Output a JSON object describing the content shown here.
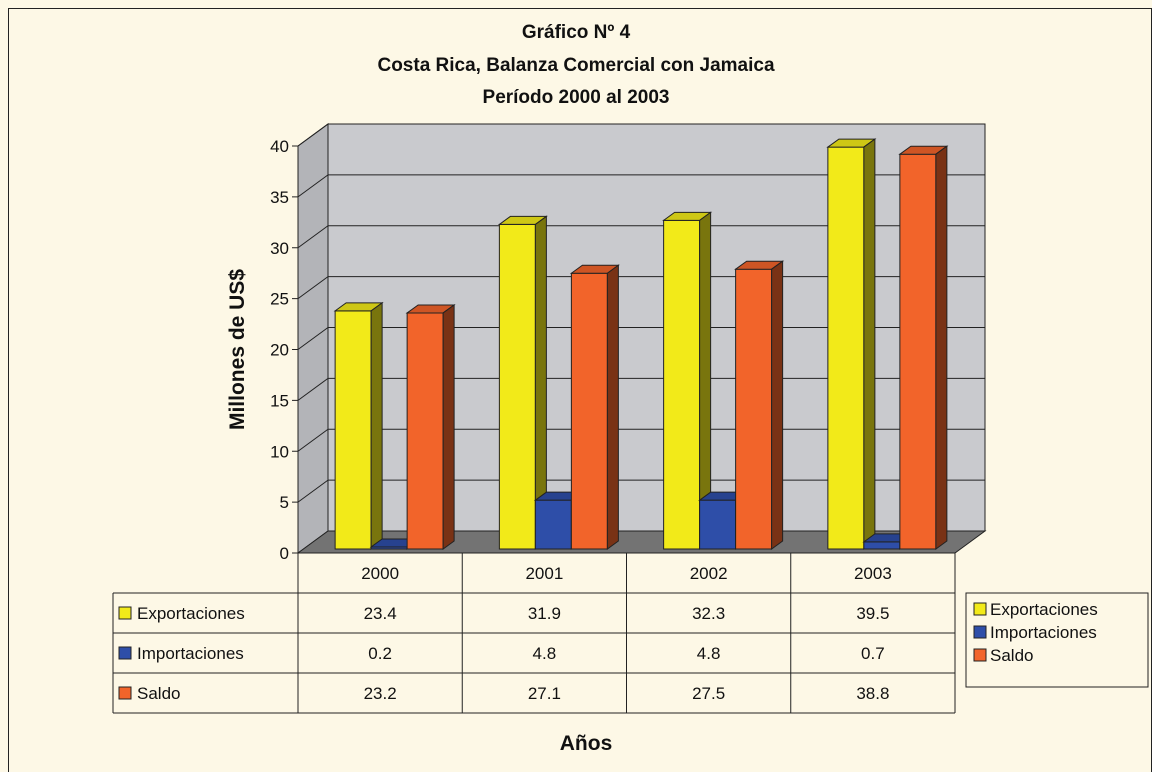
{
  "chart_data": {
    "type": "bar",
    "title": "Gráfico Nº 4",
    "subtitle_lines": [
      "Costa Rica, Balanza Comercial con Jamaica",
      "Período 2000 al 2003"
    ],
    "xlabel": "Años",
    "ylabel": "Millones de US$",
    "categories": [
      "2000",
      "2001",
      "2002",
      "2003"
    ],
    "series": [
      {
        "name": "Exportaciones",
        "values": [
          23.4,
          31.9,
          32.3,
          39.5
        ],
        "color": "#f2ea19"
      },
      {
        "name": "Importaciones",
        "values": [
          0.2,
          4.8,
          4.8,
          0.7
        ],
        "color": "#2e4ea8"
      },
      {
        "name": "Saldo",
        "values": [
          23.2,
          27.1,
          27.5,
          38.8
        ],
        "color": "#f2642a"
      }
    ],
    "table_values": [
      [
        "23.4",
        "31.9",
        "32.3",
        "39.5"
      ],
      [
        "0.2",
        "4.8",
        "4.8",
        "0.7"
      ],
      [
        "23.2",
        "27.1",
        "27.5",
        "38.8"
      ]
    ],
    "yticks": [
      "0",
      "5",
      "10",
      "15",
      "20",
      "25",
      "30",
      "35",
      "40"
    ],
    "ylim": [
      0,
      40
    ],
    "grid": true,
    "legend_position": "right",
    "three_d": true,
    "wall_color": "#c9cace",
    "floor_color": "#737373"
  }
}
